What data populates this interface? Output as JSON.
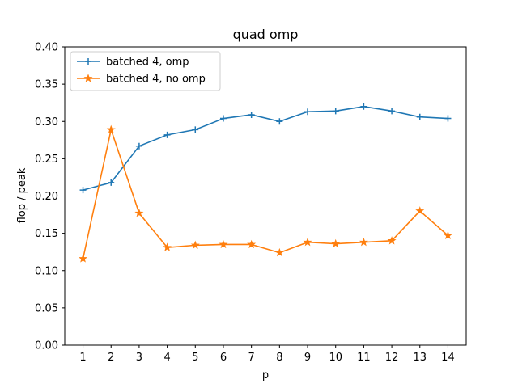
{
  "chart_data": {
    "type": "line",
    "title": "quad omp",
    "xlabel": "p",
    "ylabel": "flop / peak",
    "x": [
      1,
      2,
      3,
      4,
      5,
      6,
      7,
      8,
      9,
      10,
      11,
      12,
      13,
      14
    ],
    "xticks": [
      "1",
      "2",
      "3",
      "4",
      "5",
      "6",
      "7",
      "8",
      "9",
      "10",
      "11",
      "12",
      "13",
      "14"
    ],
    "ylim": [
      0,
      0.4
    ],
    "yticks": [
      "0.00",
      "0.05",
      "0.10",
      "0.15",
      "0.20",
      "0.25",
      "0.30",
      "0.35",
      "0.40"
    ],
    "grid": false,
    "legend_position": "top-left",
    "series": [
      {
        "name": "batched 4, omp",
        "color": "#1f77b4",
        "marker": "plus",
        "values": [
          0.208,
          0.218,
          0.267,
          0.282,
          0.289,
          0.304,
          0.309,
          0.3,
          0.313,
          0.314,
          0.32,
          0.314,
          0.306,
          0.304
        ]
      },
      {
        "name": "batched 4, no omp",
        "color": "#ff7f0e",
        "marker": "star",
        "values": [
          0.116,
          0.289,
          0.177,
          0.131,
          0.134,
          0.135,
          0.135,
          0.124,
          0.138,
          0.136,
          0.138,
          0.14,
          0.18,
          0.147
        ]
      }
    ]
  }
}
